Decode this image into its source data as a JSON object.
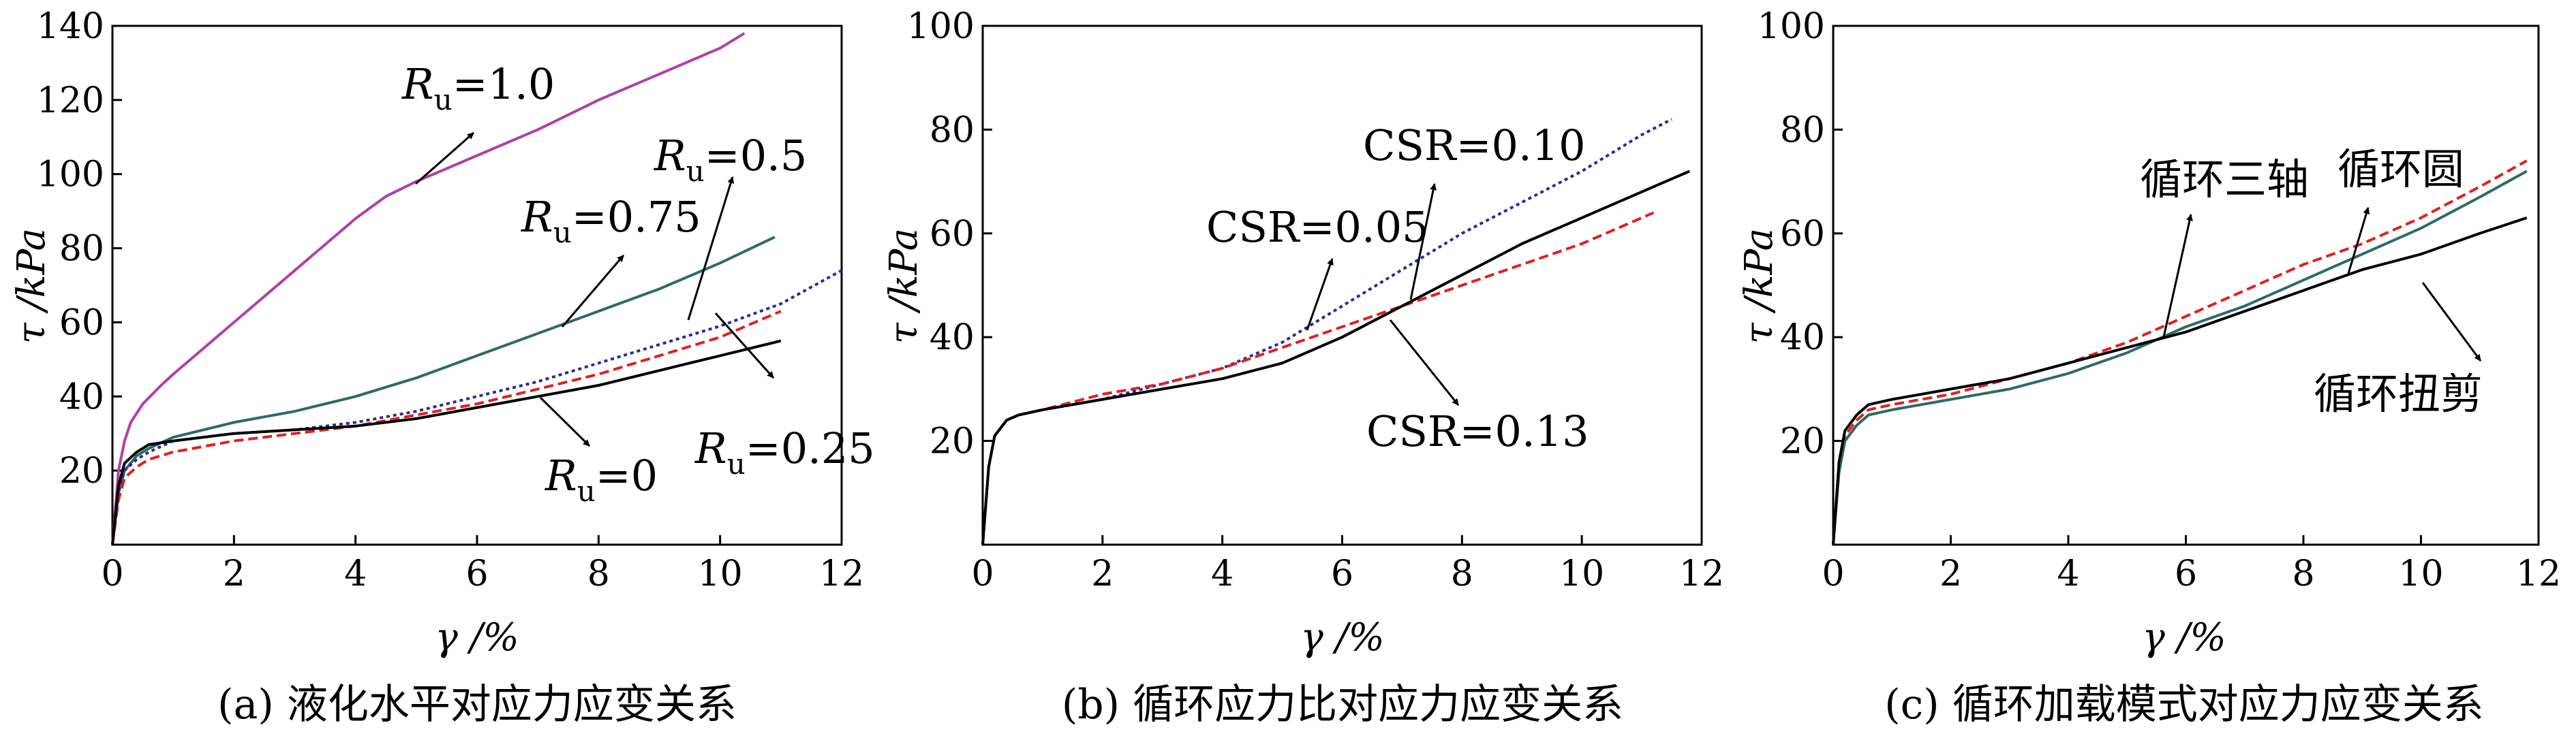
{
  "chart_data": [
    {
      "type": "line",
      "caption": "(a) 液化水平对应力应变关系",
      "xlabel": "γ /%",
      "ylabel": "τ /kPa",
      "xlim": [
        0,
        12
      ],
      "ylim": [
        0,
        140
      ],
      "xticks": [
        0,
        2,
        4,
        6,
        8,
        10,
        12
      ],
      "yticks": [
        20,
        40,
        60,
        80,
        100,
        120,
        140
      ],
      "grid": false,
      "series": [
        {
          "name": "Ru=1.0",
          "color": "#b040a8",
          "style": "solid",
          "x": [
            0,
            0.1,
            0.2,
            0.3,
            0.5,
            0.8,
            1.0,
            1.5,
            2,
            2.5,
            3,
            3.5,
            4,
            4.5,
            5,
            6,
            7,
            8,
            9,
            10,
            10.4
          ],
          "y": [
            0,
            20,
            28,
            33,
            38,
            43,
            46,
            53,
            60,
            67,
            74,
            81,
            88,
            94,
            98,
            105,
            112,
            120,
            127,
            134,
            138
          ]
        },
        {
          "name": "Ru=0.75",
          "color": "#2e6b64",
          "style": "solid",
          "x": [
            0,
            0.1,
            0.2,
            0.4,
            0.6,
            1,
            1.5,
            2,
            3,
            4,
            5,
            6,
            7,
            8,
            9,
            10,
            10.9
          ],
          "y": [
            0,
            14,
            20,
            24,
            26,
            29,
            31,
            33,
            36,
            40,
            45,
            51,
            57,
            63,
            69,
            76,
            83
          ]
        },
        {
          "name": "Ru=0.5",
          "color": "#2a2a9a",
          "style": "dotted",
          "x": [
            0,
            0.1,
            0.2,
            0.4,
            0.6,
            1,
            2,
            3,
            4,
            5,
            6,
            7,
            8,
            9,
            10,
            11,
            12
          ],
          "y": [
            0,
            14,
            20,
            23,
            25,
            28,
            30,
            31,
            33,
            36,
            40,
            44,
            49,
            54,
            59,
            65,
            74
          ]
        },
        {
          "name": "Ru=0.25",
          "color": "#e02020",
          "style": "dashed",
          "x": [
            0,
            0.1,
            0.2,
            0.4,
            0.6,
            1,
            2,
            3,
            4,
            5,
            6,
            7,
            8,
            9,
            10,
            11
          ],
          "y": [
            0,
            12,
            18,
            21,
            23,
            25,
            28,
            30,
            32,
            35,
            38,
            42,
            46,
            51,
            56,
            63
          ]
        },
        {
          "name": "Ru=0",
          "color": "#000000",
          "style": "solid",
          "x": [
            0,
            0.1,
            0.2,
            0.4,
            0.6,
            1,
            2,
            3,
            4,
            5,
            6,
            7,
            8,
            9,
            10,
            11
          ],
          "y": [
            0,
            16,
            22,
            25,
            27,
            28,
            30,
            31,
            32,
            34,
            37,
            40,
            43,
            47,
            51,
            55
          ]
        }
      ],
      "annotations": [
        {
          "main": "R",
          "sub": "u",
          "tail": "=1.0"
        },
        {
          "main": "R",
          "sub": "u",
          "tail": "=0.75"
        },
        {
          "main": "R",
          "sub": "u",
          "tail": "=0.5"
        },
        {
          "main": "R",
          "sub": "u",
          "tail": "=0.25"
        },
        {
          "main": "R",
          "sub": "u",
          "tail": "=0"
        }
      ]
    },
    {
      "type": "line",
      "caption": "(b) 循环应力比对应力应变关系",
      "xlabel": "γ /%",
      "ylabel": "τ /kPa",
      "xlim": [
        0,
        12
      ],
      "ylim": [
        0,
        100
      ],
      "xticks": [
        0,
        2,
        4,
        6,
        8,
        10,
        12
      ],
      "yticks": [
        20,
        40,
        60,
        80,
        100
      ],
      "grid": false,
      "series": [
        {
          "name": "CSR=0.10",
          "color": "#2a2a9a",
          "style": "dotted",
          "x": [
            0,
            0.1,
            0.2,
            0.4,
            0.6,
            1,
            2,
            3,
            4,
            5,
            6,
            7,
            8,
            9,
            10,
            11,
            11.5
          ],
          "y": [
            0,
            15,
            21,
            24,
            25,
            26,
            28,
            31,
            34,
            39,
            46,
            53,
            60,
            66,
            72,
            79,
            82
          ]
        },
        {
          "name": "CSR=0.05",
          "color": "#e02020",
          "style": "dashed",
          "x": [
            0,
            0.1,
            0.2,
            0.4,
            0.6,
            1,
            2,
            3,
            4,
            5,
            6,
            7,
            8,
            9,
            10,
            11,
            11.2
          ],
          "y": [
            0,
            15,
            21,
            24,
            25,
            26,
            29,
            31,
            34,
            38,
            42,
            46,
            50,
            54,
            58,
            63,
            64
          ]
        },
        {
          "name": "CSR=0.13",
          "color": "#000000",
          "style": "solid",
          "x": [
            0,
            0.1,
            0.2,
            0.4,
            0.6,
            1,
            2,
            3,
            4,
            5,
            6,
            7,
            8,
            9,
            10,
            11,
            11.8
          ],
          "y": [
            0,
            15,
            21,
            24,
            25,
            26,
            28,
            30,
            32,
            35,
            40,
            46,
            52,
            58,
            63,
            68,
            72
          ]
        }
      ],
      "annotations": [
        {
          "text": "CSR=0.10"
        },
        {
          "text": "CSR=0.05"
        },
        {
          "text": "CSR=0.13"
        }
      ]
    },
    {
      "type": "line",
      "caption": "(c) 循环加载模式对应力应变关系",
      "xlabel": "γ /%",
      "ylabel": "τ /kPa",
      "xlim": [
        0,
        12
      ],
      "ylim": [
        0,
        100
      ],
      "xticks": [
        0,
        2,
        4,
        6,
        8,
        10,
        12
      ],
      "yticks": [
        20,
        40,
        60,
        80,
        100
      ],
      "grid": false,
      "series": [
        {
          "name": "循环三轴",
          "color": "#e02020",
          "style": "dashed",
          "x": [
            0,
            0.1,
            0.2,
            0.4,
            0.6,
            1,
            2,
            3,
            4,
            5,
            6,
            7,
            8,
            9,
            10,
            11,
            11.8
          ],
          "y": [
            0,
            15,
            21,
            24,
            26,
            27,
            29,
            32,
            35,
            39,
            44,
            49,
            54,
            58,
            63,
            69,
            74
          ]
        },
        {
          "name": "循环圆",
          "color": "#2e6b64",
          "style": "solid",
          "x": [
            0,
            0.1,
            0.2,
            0.4,
            0.6,
            1,
            2,
            3,
            4,
            5,
            6,
            7,
            8,
            9,
            10,
            11,
            11.8
          ],
          "y": [
            0,
            14,
            20,
            23,
            25,
            26,
            28,
            30,
            33,
            37,
            42,
            46,
            51,
            56,
            61,
            67,
            72
          ]
        },
        {
          "name": "循环扭剪",
          "color": "#000000",
          "style": "solid",
          "x": [
            0,
            0.1,
            0.2,
            0.4,
            0.6,
            1,
            2,
            3,
            4,
            5,
            6,
            7,
            8,
            9,
            10,
            11,
            11.8
          ],
          "y": [
            0,
            16,
            22,
            25,
            27,
            28,
            30,
            32,
            35,
            38,
            41,
            45,
            49,
            53,
            56,
            60,
            63
          ]
        }
      ],
      "annotations": [
        {
          "text": "循环三轴"
        },
        {
          "text": "循环圆"
        },
        {
          "text": "循环扭剪"
        }
      ]
    }
  ]
}
